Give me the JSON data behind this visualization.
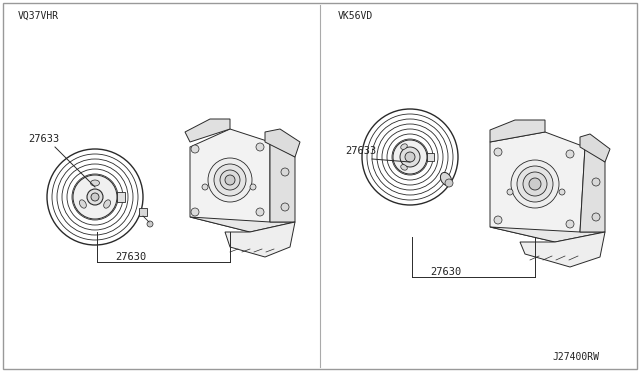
{
  "bg_color": "#ffffff",
  "border_color": "#aaaaaa",
  "line_color": "#2a2a2a",
  "text_color": "#222222",
  "left_label": "VQ37VHR",
  "right_label": "VK56VD",
  "part_27630": "27630",
  "part_27633": "27633",
  "footer": "J27400RW",
  "light_gray": "#e8e8e8",
  "mid_gray": "#d0d0d0",
  "dark_gray": "#888888"
}
